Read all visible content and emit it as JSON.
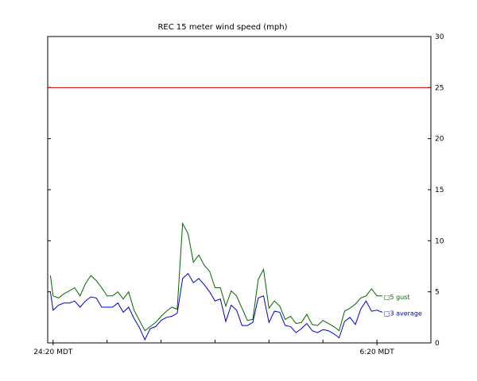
{
  "chart_data": {
    "type": "line",
    "title": "REC 15 meter wind speed (mph)",
    "xlabel": "",
    "ylabel": "",
    "y_axis_side": "right",
    "ylim": [
      0,
      30
    ],
    "yticks": [
      "0",
      "5",
      "10",
      "15",
      "20",
      "25",
      "30"
    ],
    "xtick_labels": [
      {
        "label": "24:20 MDT",
        "hour": 0
      },
      {
        "label": "6:20 MDT",
        "hour": 6
      }
    ],
    "reference_line": {
      "value": 25,
      "color": "#cc0000"
    },
    "grid": false,
    "series": [
      {
        "name": "5 gust",
        "legend_marker": "□",
        "color": "#006600",
        "x": [
          -0.05,
          0.0,
          0.1,
          0.2,
          0.3,
          0.4,
          0.5,
          0.6,
          0.7,
          0.8,
          0.9,
          1.0,
          1.1,
          1.2,
          1.3,
          1.4,
          1.5,
          1.6,
          1.7,
          1.8,
          1.9,
          2.0,
          2.1,
          2.2,
          2.3,
          2.4,
          2.5,
          2.6,
          2.7,
          2.8,
          2.9,
          3.0,
          3.1,
          3.2,
          3.3,
          3.4,
          3.5,
          3.6,
          3.7,
          3.8,
          3.9,
          4.0,
          4.1,
          4.2,
          4.3,
          4.4,
          4.5,
          4.6,
          4.7,
          4.8,
          4.9,
          5.0,
          5.1,
          5.2,
          5.3,
          5.4,
          5.5,
          5.6,
          5.7,
          5.8,
          5.9,
          6.0,
          6.1
        ],
        "values": [
          6.6,
          4.6,
          4.4,
          4.8,
          5.1,
          5.4,
          4.6,
          5.8,
          6.6,
          6.1,
          5.4,
          4.6,
          4.6,
          5.0,
          4.3,
          5.0,
          3.2,
          2.2,
          1.2,
          1.6,
          2.0,
          2.6,
          3.1,
          3.5,
          3.3,
          11.7,
          10.7,
          7.9,
          8.6,
          7.6,
          7.0,
          5.4,
          5.4,
          3.6,
          5.1,
          4.6,
          3.4,
          2.2,
          2.3,
          6.2,
          7.2,
          3.4,
          4.1,
          3.6,
          2.3,
          2.6,
          1.9,
          2.0,
          2.8,
          1.8,
          1.7,
          2.2,
          1.9,
          1.6,
          1.2,
          3.1,
          3.4,
          3.8,
          4.4,
          4.6,
          5.3,
          4.6,
          4.6
        ]
      },
      {
        "name": "3 average",
        "legend_marker": "□",
        "color": "#0000cc",
        "x": [
          -0.05,
          0.0,
          0.1,
          0.2,
          0.3,
          0.4,
          0.5,
          0.6,
          0.7,
          0.8,
          0.9,
          1.0,
          1.1,
          1.2,
          1.3,
          1.4,
          1.5,
          1.6,
          1.7,
          1.8,
          1.9,
          2.0,
          2.1,
          2.2,
          2.3,
          2.4,
          2.5,
          2.6,
          2.7,
          2.8,
          2.9,
          3.0,
          3.1,
          3.2,
          3.3,
          3.4,
          3.5,
          3.6,
          3.7,
          3.8,
          3.9,
          4.0,
          4.1,
          4.2,
          4.3,
          4.4,
          4.5,
          4.6,
          4.7,
          4.8,
          4.9,
          5.0,
          5.1,
          5.2,
          5.3,
          5.4,
          5.5,
          5.6,
          5.7,
          5.8,
          5.9,
          6.0,
          6.1
        ],
        "values": [
          5.0,
          3.2,
          3.7,
          3.9,
          3.9,
          4.1,
          3.5,
          4.1,
          4.5,
          4.4,
          3.5,
          3.5,
          3.5,
          3.9,
          3.0,
          3.5,
          2.4,
          1.5,
          0.3,
          1.4,
          1.6,
          2.2,
          2.5,
          2.6,
          2.9,
          6.3,
          6.8,
          5.9,
          6.3,
          5.7,
          5.0,
          4.1,
          4.3,
          2.1,
          3.7,
          3.2,
          1.7,
          1.7,
          2.0,
          4.4,
          4.6,
          2.0,
          3.1,
          3.0,
          1.7,
          1.6,
          1.0,
          1.4,
          1.9,
          1.2,
          1.0,
          1.3,
          1.2,
          0.9,
          0.5,
          2.1,
          2.5,
          1.8,
          3.3,
          4.1,
          3.1,
          3.2,
          3.0
        ]
      }
    ]
  }
}
